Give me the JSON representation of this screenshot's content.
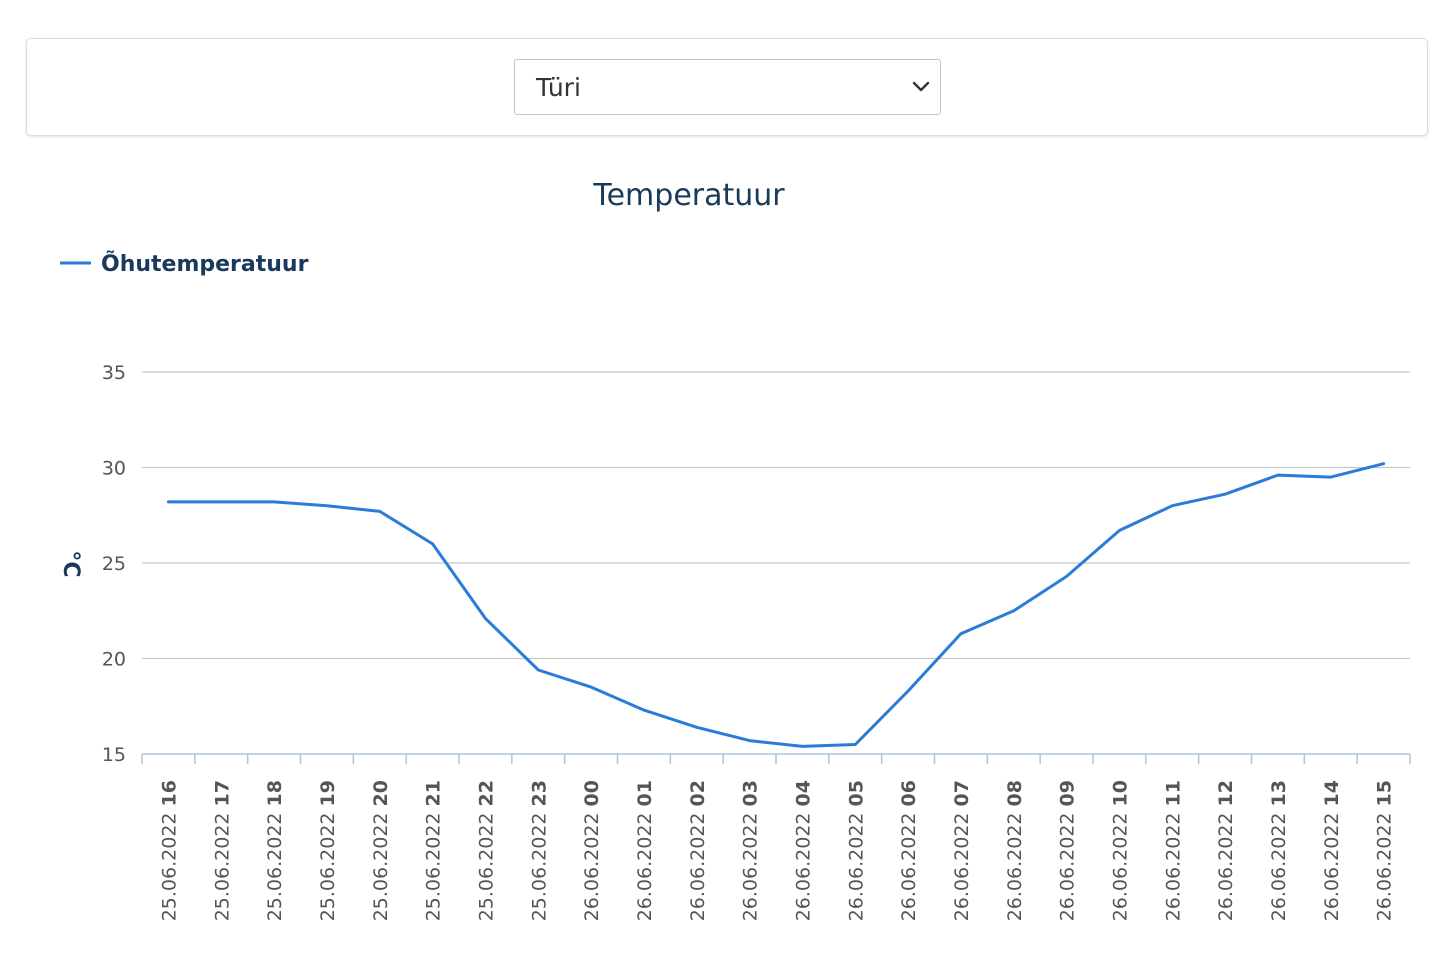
{
  "station_select": {
    "selected": "Türi"
  },
  "chart_data": {
    "type": "line",
    "title": "Temperatuur",
    "ylabel": "°C",
    "xlabel": "",
    "ylim": [
      15,
      35
    ],
    "yticks": [
      15,
      20,
      25,
      30,
      35
    ],
    "grid": true,
    "legend_position": "top-left",
    "categories": [
      "25.06.2022 16",
      "25.06.2022 17",
      "25.06.2022 18",
      "25.06.2022 19",
      "25.06.2022 20",
      "25.06.2022 21",
      "25.06.2022 22",
      "25.06.2022 23",
      "26.06.2022 00",
      "26.06.2022 01",
      "26.06.2022 02",
      "26.06.2022 03",
      "26.06.2022 04",
      "26.06.2022 05",
      "26.06.2022 06",
      "26.06.2022 07",
      "26.06.2022 08",
      "26.06.2022 09",
      "26.06.2022 10",
      "26.06.2022 11",
      "26.06.2022 12",
      "26.06.2022 13",
      "26.06.2022 14",
      "26.06.2022 15"
    ],
    "series": [
      {
        "name": "Õhutemperatuur",
        "color": "#2b7bd8",
        "values": [
          28.2,
          28.2,
          28.2,
          28.0,
          27.7,
          26.0,
          22.1,
          19.4,
          18.5,
          17.3,
          16.4,
          15.7,
          15.4,
          15.5,
          18.3,
          21.3,
          22.5,
          24.3,
          26.7,
          28.0,
          28.6,
          29.6,
          29.5,
          30.2
        ]
      }
    ],
    "colors": {
      "title": "#1a3a5c",
      "legend_text": "#1a3a5c",
      "grid": "#c8c8c8",
      "axis": "#b0c4d8",
      "tick_text": "#555555"
    }
  }
}
